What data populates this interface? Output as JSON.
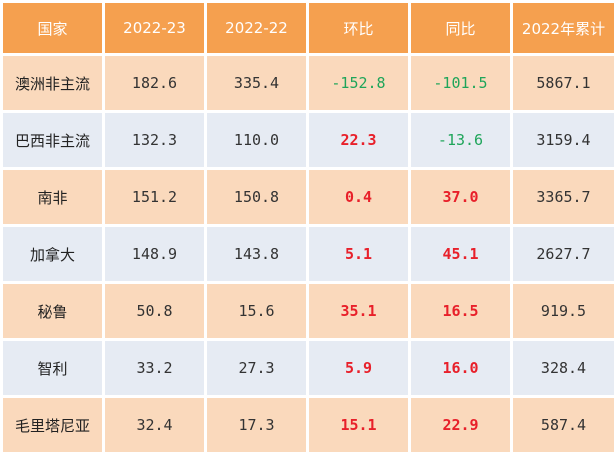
{
  "headers": [
    "国家",
    "2022-23",
    "2022-22",
    "环比",
    "同比",
    "2022年累计"
  ],
  "rows": [
    {
      "country": "澳洲非主流",
      "c1": "182.6",
      "c2": "335.4",
      "mom": "-152.8",
      "yoy": "-101.5",
      "cum": "5867.1"
    },
    {
      "country": "巴西非主流",
      "c1": "132.3",
      "c2": "110.0",
      "mom": "22.3",
      "yoy": "-13.6",
      "cum": "3159.4"
    },
    {
      "country": "南非",
      "c1": "151.2",
      "c2": "150.8",
      "mom": "0.4",
      "yoy": "37.0",
      "cum": "3365.7"
    },
    {
      "country": "加拿大",
      "c1": "148.9",
      "c2": "143.8",
      "mom": "5.1",
      "yoy": "45.1",
      "cum": "2627.7"
    },
    {
      "country": "秘鲁",
      "c1": "50.8",
      "c2": "15.6",
      "mom": "35.1",
      "yoy": "16.5",
      "cum": "919.5"
    },
    {
      "country": "智利",
      "c1": "33.2",
      "c2": "27.3",
      "mom": "5.9",
      "yoy": "16.0",
      "cum": "328.4"
    },
    {
      "country": "毛里塔尼亚",
      "c1": "32.4",
      "c2": "17.3",
      "mom": "15.1",
      "yoy": "22.9",
      "cum": "587.4"
    }
  ],
  "colors": {
    "header_bg": "#F5A04F",
    "row_odd_bg": "#FAD9BC",
    "row_even_bg": "#E6EBF3",
    "negative": "#1FA55A",
    "positive": "#E8202A"
  }
}
